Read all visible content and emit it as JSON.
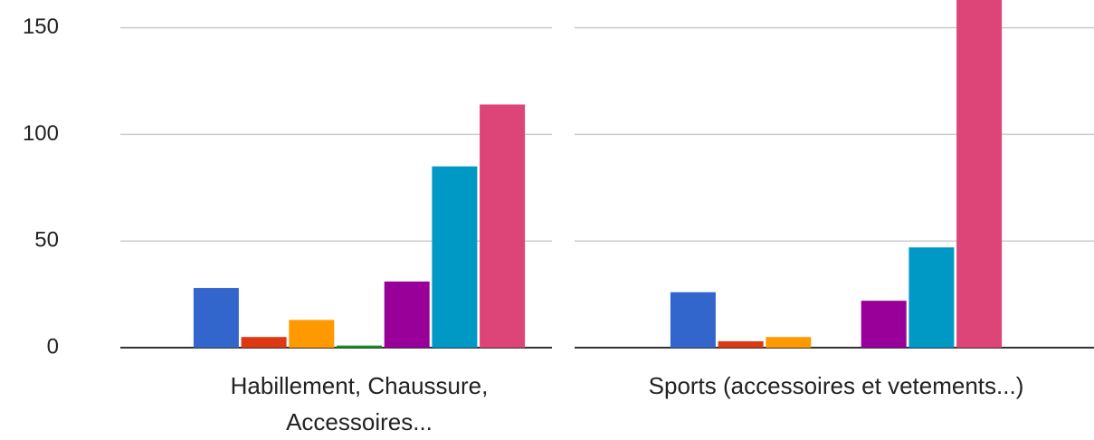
{
  "chart_data": {
    "type": "bar",
    "categories": [
      "Habillement, Chaussure, Accessoires...",
      "Sports (accessoires et vetements...)"
    ],
    "series": [
      {
        "color": "#3366cc",
        "values": [
          28,
          26
        ]
      },
      {
        "color": "#dc3912",
        "values": [
          5,
          3
        ]
      },
      {
        "color": "#ff9900",
        "values": [
          13,
          5
        ]
      },
      {
        "color": "#109618",
        "values": [
          1,
          0
        ]
      },
      {
        "color": "#990099",
        "values": [
          31,
          22
        ]
      },
      {
        "color": "#0099c6",
        "values": [
          85,
          47
        ]
      },
      {
        "color": "#dd4477",
        "values": [
          114,
          170
        ]
      }
    ],
    "ylim": [
      0,
      163
    ],
    "yticks": [
      0,
      50,
      100,
      150
    ],
    "grid": true
  }
}
